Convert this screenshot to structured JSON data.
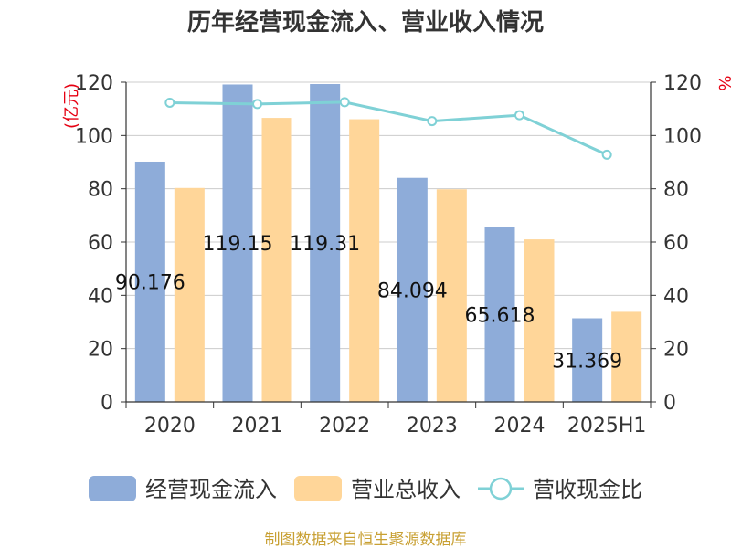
{
  "chart_data": {
    "type": "bar",
    "title": "历年经营现金流入、营业收入情况",
    "categories": [
      "2020",
      "2021",
      "2022",
      "2023",
      "2024",
      "2025H1"
    ],
    "left_axis": {
      "unit": "(亿元)",
      "ylim": [
        0,
        120
      ],
      "ticks": [
        0,
        20,
        40,
        60,
        80,
        100,
        120
      ]
    },
    "right_axis": {
      "unit": "%",
      "ylim": [
        0,
        120
      ],
      "ticks": [
        0,
        20,
        40,
        60,
        80,
        100,
        120
      ]
    },
    "series": [
      {
        "name": "经营现金流入",
        "type": "bar",
        "axis": "left",
        "color": "#8eacd9",
        "values": [
          90.176,
          119.15,
          119.31,
          84.094,
          65.618,
          31.369
        ],
        "labels": [
          "90.176",
          "119.15",
          "119.31",
          "84.094",
          "65.618",
          "31.369"
        ]
      },
      {
        "name": "营业总收入",
        "type": "bar",
        "axis": "left",
        "color": "#ffd699",
        "values": [
          80.3,
          106.6,
          106.1,
          79.8,
          61.0,
          33.8
        ]
      },
      {
        "name": "营收现金比",
        "type": "line",
        "axis": "right",
        "color": "#7fd1d6",
        "values": [
          112.3,
          111.8,
          112.5,
          105.4,
          107.6,
          92.8
        ]
      }
    ],
    "grid": true,
    "legend_position": "bottom",
    "source": "制图数据来自恒生聚源数据库"
  }
}
